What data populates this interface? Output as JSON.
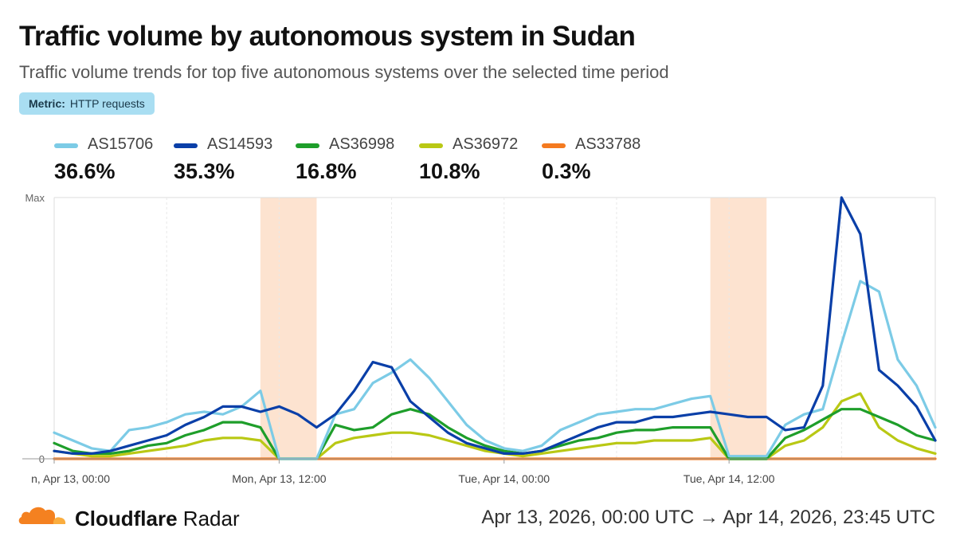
{
  "header": {
    "title": "Traffic volume by autonomous system in Sudan",
    "subtitle": "Traffic volume trends for top five autonomous systems over the selected time period",
    "metric_label": "Metric:",
    "metric_value": "HTTP requests"
  },
  "footer": {
    "brand_bold": "Cloudflare",
    "brand_rest": " Radar",
    "date_range": "Apr 13, 2026, 00:00 UTC → Apr 14, 2026, 23:45 UTC"
  },
  "colors": {
    "AS15706": "#7ccbe6",
    "AS14593": "#0a3fa8",
    "AS36998": "#1e9e2a",
    "AS36972": "#b9c814",
    "AS33788": "#f47a20",
    "shade": "#fde3d0",
    "logo_orange": "#f48120",
    "logo_light": "#faad3f"
  },
  "chart_data": {
    "type": "line",
    "x": [
      "2026-04-13 00:00",
      "2026-04-13 01:00",
      "2026-04-13 02:00",
      "2026-04-13 03:00",
      "2026-04-13 04:00",
      "2026-04-13 05:00",
      "2026-04-13 06:00",
      "2026-04-13 07:00",
      "2026-04-13 08:00",
      "2026-04-13 09:00",
      "2026-04-13 10:00",
      "2026-04-13 11:00",
      "2026-04-13 12:00",
      "2026-04-13 13:00",
      "2026-04-13 14:00",
      "2026-04-13 15:00",
      "2026-04-13 16:00",
      "2026-04-13 17:00",
      "2026-04-13 18:00",
      "2026-04-13 19:00",
      "2026-04-13 20:00",
      "2026-04-13 21:00",
      "2026-04-13 22:00",
      "2026-04-13 23:00",
      "2026-04-14 00:00",
      "2026-04-14 01:00",
      "2026-04-14 02:00",
      "2026-04-14 03:00",
      "2026-04-14 04:00",
      "2026-04-14 05:00",
      "2026-04-14 06:00",
      "2026-04-14 07:00",
      "2026-04-14 08:00",
      "2026-04-14 09:00",
      "2026-04-14 10:00",
      "2026-04-14 11:00",
      "2026-04-14 12:00",
      "2026-04-14 13:00",
      "2026-04-14 14:00",
      "2026-04-14 15:00",
      "2026-04-14 16:00",
      "2026-04-14 17:00",
      "2026-04-14 18:00",
      "2026-04-14 19:00",
      "2026-04-14 20:00",
      "2026-04-14 21:00",
      "2026-04-14 22:00",
      "2026-04-14 23:00"
    ],
    "ylabel": "",
    "y_ticks": [
      "Max",
      "0"
    ],
    "x_tick_labels": [
      "n, Apr 13, 00:00",
      "Mon, Apr 13, 12:00",
      "Tue, Apr 14, 00:00",
      "Tue, Apr 14, 12:00"
    ],
    "ylim": [
      0,
      100
    ],
    "grid": true,
    "shaded_ranges": [
      [
        "2026-04-13 11:00",
        "2026-04-13 14:00"
      ],
      [
        "2026-04-14 11:00",
        "2026-04-14 14:00"
      ]
    ],
    "series": [
      {
        "name": "AS15706",
        "share": "36.6%",
        "values": [
          10,
          7,
          4,
          3,
          11,
          12,
          14,
          17,
          18,
          17,
          20,
          26,
          0,
          0,
          0,
          17,
          19,
          29,
          33,
          38,
          31,
          22,
          13,
          7,
          4,
          3,
          5,
          11,
          14,
          17,
          18,
          19,
          19,
          21,
          23,
          24,
          1,
          1,
          1,
          13,
          17,
          19,
          44,
          68,
          64,
          38,
          28,
          12
        ]
      },
      {
        "name": "AS14593",
        "share": "35.3%",
        "values": [
          3,
          2,
          2,
          3,
          5,
          7,
          9,
          13,
          16,
          20,
          20,
          18,
          20,
          17,
          12,
          17,
          26,
          37,
          35,
          22,
          16,
          10,
          6,
          4,
          2,
          2,
          3,
          6,
          9,
          12,
          14,
          14,
          16,
          16,
          17,
          18,
          17,
          16,
          16,
          11,
          12,
          28,
          100,
          86,
          34,
          28,
          20,
          7
        ]
      },
      {
        "name": "AS36998",
        "share": "16.8%",
        "values": [
          6,
          3,
          2,
          2,
          3,
          5,
          6,
          9,
          11,
          14,
          14,
          12,
          0,
          0,
          0,
          13,
          11,
          12,
          17,
          19,
          17,
          12,
          8,
          5,
          3,
          2,
          3,
          5,
          7,
          8,
          10,
          11,
          11,
          12,
          12,
          12,
          0,
          0,
          0,
          8,
          11,
          15,
          19,
          19,
          16,
          13,
          9,
          7
        ]
      },
      {
        "name": "AS36972",
        "share": "10.8%",
        "values": [
          3,
          2,
          1,
          1,
          2,
          3,
          4,
          5,
          7,
          8,
          8,
          7,
          0,
          0,
          0,
          6,
          8,
          9,
          10,
          10,
          9,
          7,
          5,
          3,
          2,
          1,
          2,
          3,
          4,
          5,
          6,
          6,
          7,
          7,
          7,
          8,
          0,
          0,
          0,
          5,
          7,
          12,
          22,
          25,
          12,
          7,
          4,
          2
        ]
      },
      {
        "name": "AS33788",
        "share": "0.3%",
        "values": [
          0,
          0,
          0,
          0,
          0,
          0,
          0,
          0,
          0,
          0,
          0,
          0,
          0,
          0,
          0,
          0,
          0,
          0,
          0,
          0,
          0,
          0,
          0,
          0,
          0,
          0,
          0,
          0,
          0,
          0,
          0,
          0,
          0,
          0,
          0,
          0,
          0,
          0,
          0,
          0,
          0,
          0,
          0,
          0,
          0,
          0,
          0,
          0
        ]
      }
    ]
  }
}
